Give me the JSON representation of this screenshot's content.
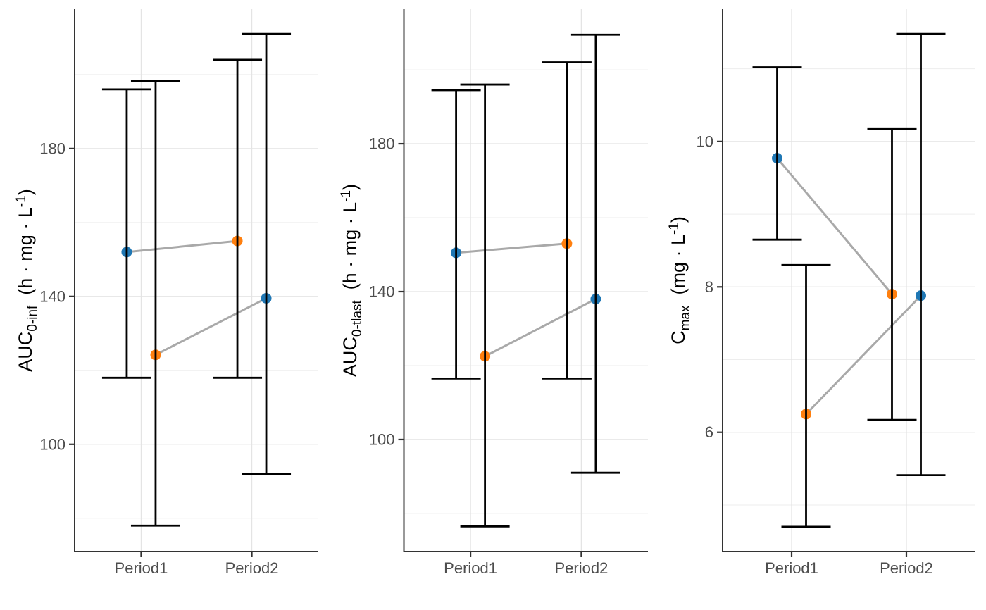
{
  "figure": {
    "background": "#ffffff",
    "description": "Three-panel pharmacokinetic point-range plot by period"
  },
  "colors": {
    "point_blue": "#1f77b4",
    "point_orange": "#ff7f0e",
    "segment": "#a9a9a9",
    "errorbar": "#000000",
    "grid_major": "#e4e4e4",
    "grid_minor": "#ededed",
    "axis_line": "#333333",
    "tick_mark": "#333333",
    "tick_text": "#4d4d4d",
    "title_text": "#000000"
  },
  "chart_data": [
    {
      "type": "pointrange",
      "title": "",
      "ylabel": {
        "base": "AUC",
        "sub": "0-inf",
        "units_pre": "(h · mg · L",
        "units_sup": "-1",
        "units_post": ")"
      },
      "x_categories": [
        "Period1",
        "Period2"
      ],
      "ylim": [
        71.0,
        217.7
      ],
      "yticks_major": [
        100,
        140,
        180
      ],
      "yticks_minor": [
        80,
        120,
        160,
        200
      ],
      "grid": true,
      "legend": "none",
      "points": [
        {
          "series": "blue",
          "period": "Period1",
          "value": 152.0,
          "lo": 118.0,
          "hi": 196.0,
          "dodge": -1
        },
        {
          "series": "orange",
          "period": "Period1",
          "value": 124.2,
          "lo": 78.0,
          "hi": 198.3,
          "dodge": 1
        },
        {
          "series": "orange",
          "period": "Period2",
          "value": 155.0,
          "lo": 118.0,
          "hi": 204.0,
          "dodge": -1
        },
        {
          "series": "blue",
          "period": "Period2",
          "value": 139.5,
          "lo": 92.0,
          "hi": 211.0,
          "dodge": 1
        }
      ],
      "segments": [
        [
          0,
          2
        ],
        [
          1,
          3
        ]
      ]
    },
    {
      "type": "pointrange",
      "title": "",
      "ylabel": {
        "base": "AUC",
        "sub": "0-tlast",
        "units_pre": "(h · mg · L",
        "units_sup": "-1",
        "units_post": ")"
      },
      "x_categories": [
        "Period1",
        "Period2"
      ],
      "ylim": [
        69.7,
        216.4
      ],
      "yticks_major": [
        100,
        140,
        180
      ],
      "yticks_minor": [
        80,
        120,
        160,
        200
      ],
      "grid": true,
      "legend": "none",
      "points": [
        {
          "series": "blue",
          "period": "Period1",
          "value": 150.5,
          "lo": 116.5,
          "hi": 194.5,
          "dodge": -1
        },
        {
          "series": "orange",
          "period": "Period1",
          "value": 122.5,
          "lo": 76.5,
          "hi": 196.0,
          "dodge": 1
        },
        {
          "series": "orange",
          "period": "Period2",
          "value": 153.0,
          "lo": 116.5,
          "hi": 202.0,
          "dodge": -1
        },
        {
          "series": "blue",
          "period": "Period2",
          "value": 138.0,
          "lo": 91.0,
          "hi": 209.5,
          "dodge": 1
        }
      ],
      "segments": [
        [
          0,
          2
        ],
        [
          1,
          3
        ]
      ]
    },
    {
      "type": "pointrange",
      "title": "",
      "ylabel": {
        "base": "C",
        "sub": "max",
        "units_pre": "(mg · L",
        "units_sup": "-1",
        "units_post": ")"
      },
      "x_categories": [
        "Period1",
        "Period2"
      ],
      "ylim": [
        4.36,
        11.82
      ],
      "yticks_major": [
        6,
        8,
        10
      ],
      "yticks_minor": [
        5,
        7,
        9,
        11
      ],
      "grid": true,
      "legend": "none",
      "points": [
        {
          "series": "blue",
          "period": "Period1",
          "value": 9.77,
          "lo": 8.65,
          "hi": 11.02,
          "dodge": -1
        },
        {
          "series": "orange",
          "period": "Period1",
          "value": 6.25,
          "lo": 4.7,
          "hi": 8.3,
          "dodge": 1
        },
        {
          "series": "orange",
          "period": "Period2",
          "value": 7.9,
          "lo": 6.17,
          "hi": 10.17,
          "dodge": -1
        },
        {
          "series": "blue",
          "period": "Period2",
          "value": 7.88,
          "lo": 5.41,
          "hi": 11.48,
          "dodge": 1
        }
      ],
      "segments": [
        [
          0,
          2
        ],
        [
          1,
          3
        ]
      ]
    }
  ]
}
